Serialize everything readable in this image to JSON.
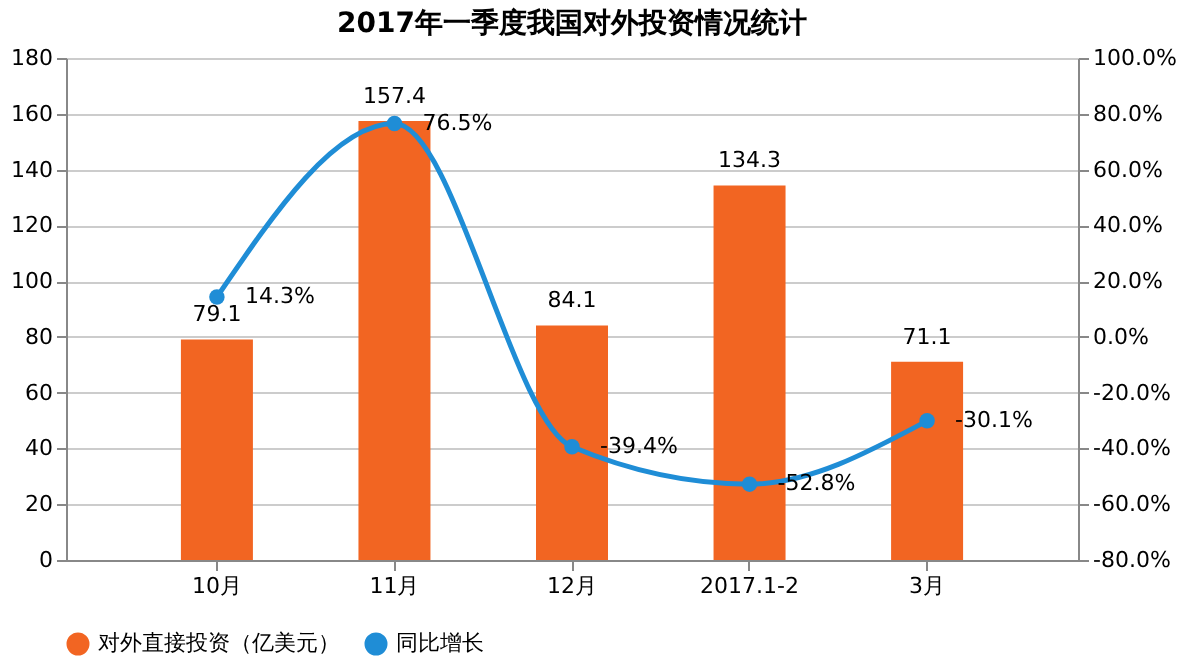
{
  "chart_data": {
    "type": "bar",
    "title": "2017年一季度我国对外投资情况统计",
    "categories": [
      "10月",
      "11月",
      "12月",
      "2017.1-2",
      "3月"
    ],
    "series": [
      {
        "name": "对外直接投资（亿美元）",
        "color": "#f26522",
        "values": [
          79.1,
          157.4,
          84.1,
          134.3,
          71.1
        ]
      },
      {
        "name": "同比增长",
        "type": "line",
        "axis": "y2",
        "color": "#1f8dd6",
        "marker": "circle",
        "values": [
          14.3,
          76.5,
          -39.4,
          -52.8,
          -30.1
        ],
        "value_labels": [
          "14.3%",
          "76.5%",
          "-39.4%",
          "-52.8%",
          "-30.1%"
        ]
      }
    ],
    "ylim": [
      0,
      180
    ],
    "yticks": [
      0,
      20,
      40,
      60,
      80,
      100,
      120,
      140,
      160,
      180
    ],
    "y2lim": [
      -80,
      100
    ],
    "y2ticks": [
      {
        "value": -80,
        "label": "-80.0%"
      },
      {
        "value": -60,
        "label": "-60.0%"
      },
      {
        "value": -40,
        "label": "-40.0%"
      },
      {
        "value": -20,
        "label": "-20.0%"
      },
      {
        "value": 0,
        "label": "0.0%"
      },
      {
        "value": 20,
        "label": "20.0%"
      },
      {
        "value": 40,
        "label": "40.0%"
      },
      {
        "value": 60,
        "label": "60.0%"
      },
      {
        "value": 80,
        "label": "80.0%"
      },
      {
        "value": 100,
        "label": "100.0%"
      }
    ],
    "data_labels": true,
    "grid": "y",
    "legend": "bottom"
  }
}
